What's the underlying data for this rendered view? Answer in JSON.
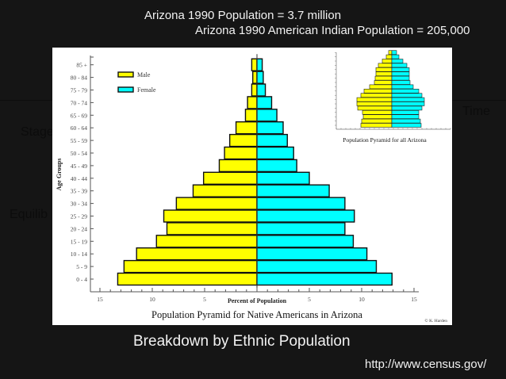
{
  "slide": {
    "title_line1": "Arizona 1990 Population = 3.7 million",
    "title_line2": "Arizona 1990 American Indian Population = 205,000",
    "caption": "Breakdown by Ethnic Population",
    "source": "http://www.census.gov/",
    "background_fragments": [
      "Stage",
      "Equilib",
      "Time"
    ]
  },
  "colors": {
    "male": "#ffff00",
    "female": "#00ffff",
    "background": "#151515",
    "text": "#f2f2f2"
  },
  "chart_data": [
    {
      "type": "bar",
      "orientation": "horizontal-pyramid",
      "title": "Population Pyramid for Native Americans in Arizona",
      "xlabel": "Percent of Population",
      "ylabel": "Age Groups",
      "xlim": [
        -15,
        15
      ],
      "x_tick_labels": [
        "15",
        "10",
        "5",
        "5",
        "10",
        "15"
      ],
      "legend": [
        "Male",
        "Female"
      ],
      "legend_position": "upper-left",
      "credit": "© K. Harden",
      "categories": [
        "0 - 4",
        "5 - 9",
        "10 - 14",
        "15 - 19",
        "20 - 24",
        "25 - 29",
        "30 - 34",
        "35 - 39",
        "40 - 44",
        "45 - 49",
        "50 - 54",
        "55 - 59",
        "60 - 64",
        "65 - 69",
        "70 - 74",
        "75 - 79",
        "80 - 84",
        "85 +"
      ],
      "series": [
        {
          "name": "Male",
          "values": [
            13.3,
            12.7,
            11.5,
            9.6,
            8.6,
            8.9,
            7.7,
            6.1,
            5.1,
            3.6,
            3.1,
            2.6,
            2.0,
            1.1,
            0.9,
            0.5,
            0.4,
            0.5
          ]
        },
        {
          "name": "Female",
          "values": [
            12.9,
            11.4,
            10.5,
            9.2,
            8.4,
            9.3,
            8.4,
            6.9,
            5.0,
            3.8,
            3.5,
            2.9,
            2.5,
            1.9,
            1.4,
            0.8,
            0.6,
            0.5
          ]
        }
      ]
    },
    {
      "type": "bar",
      "orientation": "horizontal-pyramid",
      "title": "Population Pyramid for all Arizona",
      "legend": [
        "Male",
        "Female"
      ],
      "categories": [
        "0 - 4",
        "5 - 9",
        "10 - 14",
        "15 - 19",
        "20 - 24",
        "25 - 29",
        "30 - 34",
        "35 - 39",
        "40 - 44",
        "45 - 49",
        "50 - 54",
        "55 - 59",
        "60 - 64",
        "65 - 69",
        "70 - 74",
        "75 - 79",
        "80 - 84",
        "85 +"
      ],
      "series": [
        {
          "name": "Male",
          "values": [
            3.9,
            3.8,
            3.6,
            3.7,
            4.3,
            4.4,
            4.4,
            3.9,
            3.5,
            2.8,
            2.2,
            2.1,
            2.0,
            2.0,
            1.7,
            1.2,
            0.7,
            0.4
          ]
        },
        {
          "name": "Female",
          "values": [
            3.7,
            3.6,
            3.4,
            3.4,
            3.8,
            4.1,
            4.1,
            3.8,
            3.4,
            2.7,
            2.3,
            2.2,
            2.2,
            2.2,
            1.9,
            1.4,
            0.9,
            0.6
          ]
        }
      ]
    }
  ]
}
